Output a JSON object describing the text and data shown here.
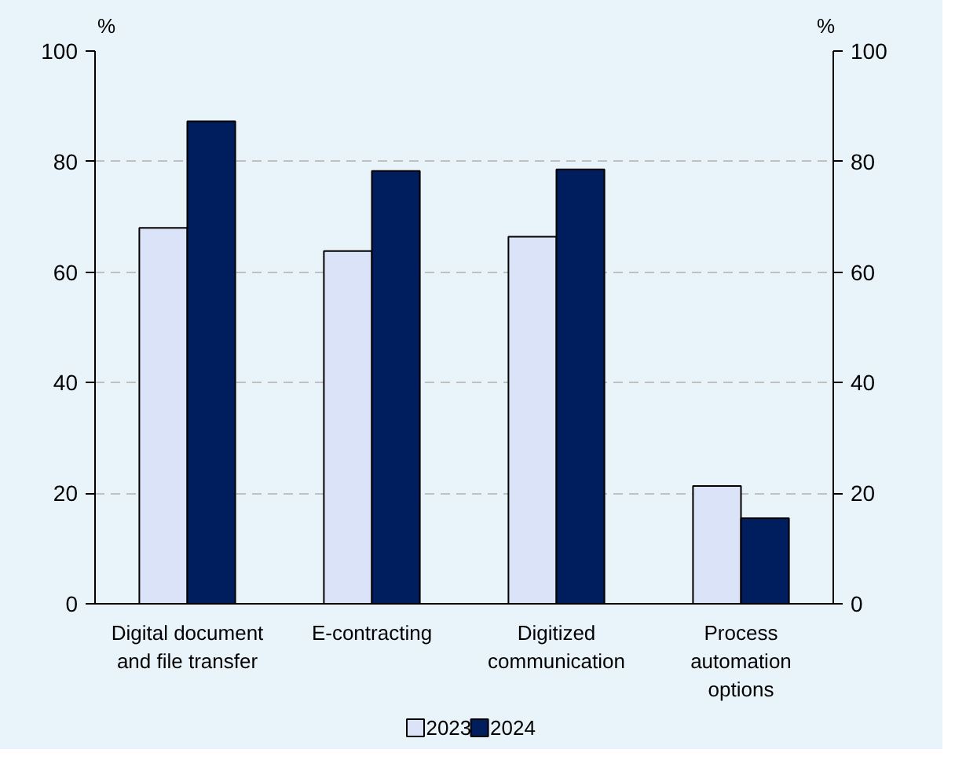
{
  "chart_data": {
    "type": "bar",
    "categories": [
      "Digital document and file transfer",
      "E-contracting",
      "Digitized communication",
      "Process automation options"
    ],
    "series": [
      {
        "name": "2023",
        "color": "#dae3f7",
        "values": [
          68.0,
          63.8,
          66.4,
          21.3
        ]
      },
      {
        "name": "2024",
        "color": "#001e5e",
        "values": [
          87.3,
          78.3,
          78.6,
          15.5
        ]
      }
    ],
    "ylabel": "%",
    "y2label": "%",
    "ylim": [
      0,
      100
    ],
    "yticks": [
      0,
      20,
      40,
      60,
      80,
      100
    ],
    "y2lim": [
      0,
      100
    ],
    "y2ticks": [
      0,
      20,
      40,
      60,
      80,
      100
    ],
    "grid": "y",
    "legend": "bottom"
  }
}
